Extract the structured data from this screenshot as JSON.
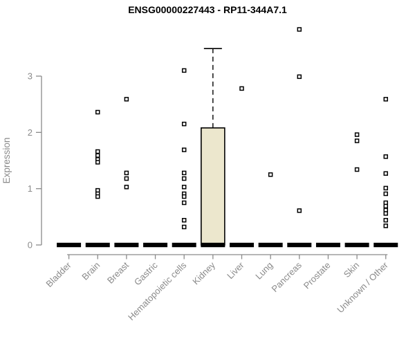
{
  "window": {
    "background": "#ffffff"
  },
  "chart_data": {
    "type": "box",
    "title": "ENSG00000227443 - RP11-344A7.1",
    "xlabel": "",
    "ylabel": "Expression",
    "ylim": [
      0,
      3.9
    ],
    "yticks": [
      0,
      1,
      2,
      3
    ],
    "grid": false,
    "legend": "none",
    "categories": [
      "Bladder",
      "Brain",
      "Breast",
      "Gastric",
      "Hematopoietic cells",
      "Kidney",
      "Liver",
      "Lung",
      "Pancreas",
      "Prostate",
      "Skin",
      "Unknown / Other"
    ],
    "series": [
      {
        "category": "Bladder",
        "q1": 0,
        "median": 0,
        "q3": 0,
        "whisker_low": 0,
        "whisker_high": 0,
        "points": []
      },
      {
        "category": "Brain",
        "q1": 0,
        "median": 0,
        "q3": 0,
        "whisker_low": 0,
        "whisker_high": 0,
        "points": [
          2.36,
          1.66,
          1.59,
          1.52,
          1.47,
          0.97,
          0.91,
          0.86
        ]
      },
      {
        "category": "Breast",
        "q1": 0,
        "median": 0,
        "q3": 0,
        "whisker_low": 0,
        "whisker_high": 0,
        "points": [
          2.59,
          1.28,
          1.18,
          1.03
        ]
      },
      {
        "category": "Gastric",
        "q1": 0,
        "median": 0,
        "q3": 0,
        "whisker_low": 0,
        "whisker_high": 0,
        "points": []
      },
      {
        "category": "Hematopoietic cells",
        "q1": 0,
        "median": 0,
        "q3": 0,
        "whisker_low": 0,
        "whisker_high": 0,
        "points": [
          3.1,
          2.15,
          1.69,
          1.28,
          1.18,
          1.03,
          0.91,
          0.86,
          0.75,
          0.44,
          0.32
        ]
      },
      {
        "category": "Kidney",
        "q1": 0,
        "median": 0,
        "q3": 2.08,
        "whisker_low": 0,
        "whisker_high": 3.49,
        "points": []
      },
      {
        "category": "Liver",
        "q1": 0,
        "median": 0,
        "q3": 0,
        "whisker_low": 0,
        "whisker_high": 0,
        "points": [
          2.78
        ]
      },
      {
        "category": "Lung",
        "q1": 0,
        "median": 0,
        "q3": 0,
        "whisker_low": 0,
        "whisker_high": 0,
        "points": [
          1.25
        ]
      },
      {
        "category": "Pancreas",
        "q1": 0,
        "median": 0,
        "q3": 0,
        "whisker_low": 0,
        "whisker_high": 0,
        "points": [
          3.83,
          2.99,
          0.61
        ]
      },
      {
        "category": "Prostate",
        "q1": 0,
        "median": 0,
        "q3": 0,
        "whisker_low": 0,
        "whisker_high": 0,
        "points": []
      },
      {
        "category": "Skin",
        "q1": 0,
        "median": 0,
        "q3": 0,
        "whisker_low": 0,
        "whisker_high": 0,
        "points": [
          1.96,
          1.85,
          1.34
        ]
      },
      {
        "category": "Unknown / Other",
        "q1": 0,
        "median": 0,
        "q3": 0,
        "whisker_low": 0,
        "whisker_high": 0,
        "points": [
          2.59,
          1.57,
          1.27,
          1.01,
          0.91,
          0.75,
          0.69,
          0.62,
          0.56,
          0.44,
          0.34
        ]
      }
    ]
  },
  "colors": {
    "box_fill": "#ece7cd",
    "box_border": "#000000",
    "median": "#000000",
    "point": "#000000",
    "point_fill": "#ffffff",
    "axis": "#8a8a8a",
    "title": "#000000"
  }
}
